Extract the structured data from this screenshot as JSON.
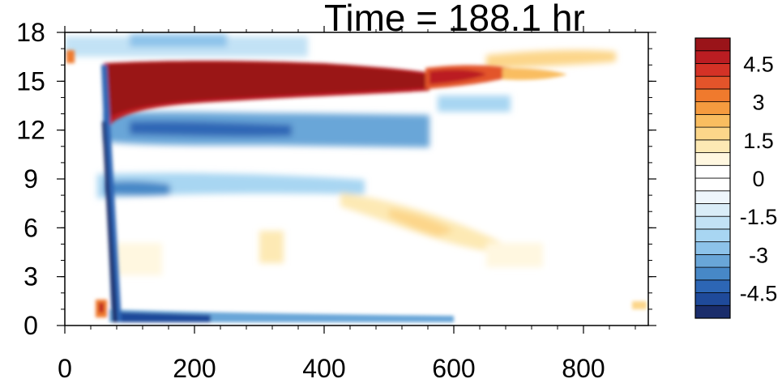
{
  "chart_data": {
    "type": "heatmap",
    "title": "Time = 188.1 hr",
    "xlabel": "",
    "ylabel": "",
    "xlim": [
      0,
      900
    ],
    "ylim": [
      0,
      18
    ],
    "x_ticks": [
      0,
      200,
      400,
      600,
      800
    ],
    "y_ticks": [
      0,
      3,
      6,
      9,
      12,
      15,
      18
    ],
    "colorbar": {
      "levels": [
        -5.5,
        -5,
        -4.5,
        -4,
        -3.5,
        -3,
        -2.5,
        -2,
        -1.5,
        -1,
        -0.5,
        0,
        0.5,
        1,
        1.5,
        2,
        2.5,
        3,
        3.5,
        4,
        4.5,
        5,
        5.5
      ],
      "tick_labels": [
        "4.5",
        "3",
        "1.5",
        "0",
        "-1.5",
        "-3",
        "-4.5"
      ],
      "tick_values": [
        4.5,
        3,
        1.5,
        0,
        -1.5,
        -3,
        -4.5
      ],
      "colors": [
        "#1a2d6b",
        "#1f4a9a",
        "#2d66b5",
        "#4788c7",
        "#69a6d8",
        "#8dc3ea",
        "#a8d6f2",
        "#c2e2f5",
        "#d9edf8",
        "#eef6fc",
        "#ffffff",
        "#ffffff",
        "#fff7e0",
        "#fde9b4",
        "#fcd68a",
        "#f9bd60",
        "#f59b3f",
        "#f07a2d",
        "#e3542a",
        "#d43226",
        "#bb1d22",
        "#9a1419"
      ]
    },
    "regions": [
      {
        "name": "upper-positive-band",
        "x": [
          65,
          550
        ],
        "y": [
          12.5,
          16.2
        ],
        "value": 5.5
      },
      {
        "name": "upper-positive-band-extension",
        "x": [
          550,
          700
        ],
        "y": [
          14.8,
          16.0
        ],
        "value": 4.0
      },
      {
        "name": "negative-band-12",
        "x": [
          65,
          550
        ],
        "y": [
          11.0,
          12.8
        ],
        "value": -3.5
      },
      {
        "name": "negative-band-9",
        "x": [
          65,
          450
        ],
        "y": [
          8.0,
          9.5
        ],
        "value": -2.0
      },
      {
        "name": "negative-band-bottom",
        "x": [
          80,
          560
        ],
        "y": [
          0.2,
          1.0
        ],
        "value": -4.5
      },
      {
        "name": "positive-patch-mid",
        "x": [
          420,
          620
        ],
        "y": [
          5.0,
          7.5
        ],
        "value": 1.5
      }
    ]
  }
}
